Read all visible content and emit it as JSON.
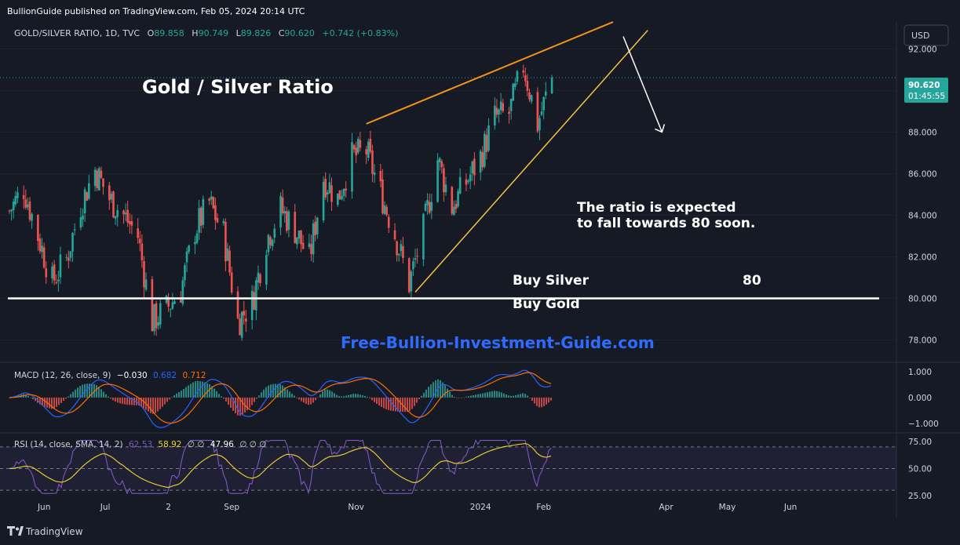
{
  "header": {
    "published": "BullionGuide published on TradingView.com, Feb 05, 2024 20:14 UTC"
  },
  "symbol_line": {
    "symbol": "GOLD/SILVER RATIO, 1D, TVC",
    "o_label": "O",
    "o": "89.858",
    "h_label": "H",
    "h": "90.749",
    "l_label": "L",
    "l": "89.826",
    "c_label": "C",
    "c": "90.620",
    "change": "+0.742 (+0.83%)"
  },
  "currency": "USD",
  "price_tag": {
    "price": "90.620",
    "countdown": "01:45:55"
  },
  "annotations": {
    "title": "Gold / Silver Ratio",
    "expectation_line1": "The ratio is expected",
    "expectation_line2": "to fall towards 80 soon.",
    "buy_silver": "Buy Silver",
    "buy_gold": "Buy Gold",
    "level_80": "80",
    "watermark": "Free-Bullion-Investment-Guide.com"
  },
  "indicators": {
    "macd_name": "MACD (12, 26, close, 9)",
    "macd_hist": "−0.030",
    "macd_line": "0.682",
    "macd_signal": "0.712",
    "rsi_name": "RSI (14, close, SMA, 14, 2)",
    "rsi_a": "62.53",
    "rsi_b": "58.92",
    "rsi_c": "∅ ∅",
    "rsi_d": "47.96",
    "rsi_e": "∅ ∅ ∅"
  },
  "footer": {
    "brand": "TradingView"
  },
  "colors": {
    "up": "#26a69a",
    "down": "#ef5350",
    "background": "#161a25",
    "macd": "#2962ff",
    "signal": "#ff6d00",
    "rsi": "#7e57c2",
    "rsi_ma": "#f2d530",
    "channel_upper": "#f7931a",
    "channel_lower": "#f5c242",
    "watermark": "#2f6bff"
  },
  "chart_data": [
    {
      "type": "candlestick",
      "title": "GOLD/SILVER RATIO, 1D, TVC",
      "ylim": [
        77,
        93.3
      ],
      "y_ticks": [
        78,
        80,
        82,
        84,
        86,
        88,
        90,
        92
      ],
      "y_tick_labels": [
        "78.000",
        "80.000",
        "82.000",
        "84.000",
        "86.000",
        "88.000",
        "90.000",
        "92.000"
      ],
      "x_tick_labels": [
        "Jun",
        "Jul",
        "2",
        "Sep",
        "Nov",
        "2024",
        "Feb",
        "Apr",
        "May",
        "Jun"
      ],
      "close_path": [
        [
          "2023-05-15",
          84.2
        ],
        [
          "2023-05-22",
          85.3
        ],
        [
          "2023-05-29",
          83.0
        ],
        [
          "2023-06-05",
          80.8
        ],
        [
          "2023-06-12",
          81.9
        ],
        [
          "2023-06-19",
          84.5
        ],
        [
          "2023-06-26",
          86.2
        ],
        [
          "2023-07-03",
          84.8
        ],
        [
          "2023-07-10",
          84.0
        ],
        [
          "2023-07-17",
          83.0
        ],
        [
          "2023-07-24",
          78.9
        ],
        [
          "2023-07-31",
          79.5
        ],
        [
          "2023-08-07",
          80.4
        ],
        [
          "2023-08-14",
          83.3
        ],
        [
          "2023-08-21",
          84.6
        ],
        [
          "2023-08-28",
          83.1
        ],
        [
          "2023-09-04",
          78.9
        ],
        [
          "2023-09-11",
          79.8
        ],
        [
          "2023-09-18",
          82.8
        ],
        [
          "2023-09-25",
          84.3
        ],
        [
          "2023-10-02",
          83.3
        ],
        [
          "2023-10-09",
          81.9
        ],
        [
          "2023-10-16",
          85.8
        ],
        [
          "2023-10-23",
          84.8
        ],
        [
          "2023-10-30",
          86.8
        ],
        [
          "2023-11-06",
          87.1
        ],
        [
          "2023-11-13",
          85.1
        ],
        [
          "2023-11-20",
          83.1
        ],
        [
          "2023-11-27",
          80.7
        ],
        [
          "2023-12-04",
          83.3
        ],
        [
          "2023-12-11",
          86.7
        ],
        [
          "2023-12-18",
          84.4
        ],
        [
          "2023-12-25",
          85.6
        ],
        [
          "2024-01-01",
          86.8
        ],
        [
          "2024-01-08",
          88.7
        ],
        [
          "2024-01-15",
          88.9
        ],
        [
          "2024-01-22",
          91.2
        ],
        [
          "2024-01-29",
          88.4
        ],
        [
          "2024-02-05",
          90.62
        ]
      ],
      "last_price": 90.62,
      "horizontal_level": 80,
      "projection_target": 88.0
    },
    {
      "type": "line",
      "title": "MACD (12, 26, close, 9)",
      "ylim": [
        -1.25,
        1.25
      ],
      "y_tick_labels": [
        "1.000",
        "0.000",
        "−1.000"
      ],
      "last": {
        "histogram": -0.03,
        "macd": 0.682,
        "signal": 0.712
      }
    },
    {
      "type": "line",
      "title": "RSI (14, close, SMA, 14, 2)",
      "ylim": [
        25,
        80
      ],
      "y_tick_labels": [
        "75.00",
        "50.00",
        "25.00"
      ],
      "last": {
        "rsi": 62.53,
        "rsi_ma": 58.92
      }
    }
  ]
}
